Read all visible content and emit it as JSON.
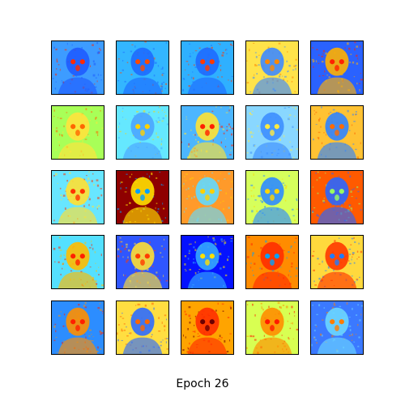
{
  "caption": "Epoch 26",
  "colormap": "jet",
  "colors": {
    "background": "#ffffff",
    "frame": "#000000",
    "jet_dark_blue": "#00008f",
    "jet_blue": "#0000ff",
    "jet_cyan": "#00ffff",
    "jet_yellow": "#ffff00",
    "jet_red": "#ff0000",
    "jet_dark_red": "#800000"
  },
  "grid": {
    "rows": 5,
    "columns": 5
  },
  "tiles": [
    {
      "bg": "#3d9cff",
      "face": "#1e5cff",
      "hot": "#ff2a00"
    },
    {
      "bg": "#33b6ff",
      "face": "#1d6bff",
      "hot": "#ff4a00"
    },
    {
      "bg": "#2fb0ff",
      "face": "#1e6cff",
      "hot": "#ff3a00"
    },
    {
      "bg": "#ffe34a",
      "face": "#3e8aff",
      "hot": "#ff8800"
    },
    {
      "bg": "#2a62ff",
      "face": "#ffb000",
      "hot": "#ff2200"
    },
    {
      "bg": "#a8ff58",
      "face": "#ffe33d",
      "hot": "#ff6600"
    },
    {
      "bg": "#65e8ff",
      "face": "#4ba5ff",
      "hot": "#ffd100"
    },
    {
      "bg": "#4cb6ff",
      "face": "#ffe233",
      "hot": "#ff1f00"
    },
    {
      "bg": "#89d7ff",
      "face": "#3e8fff",
      "hot": "#ffea40"
    },
    {
      "bg": "#ffc233",
      "face": "#2f84ff",
      "hot": "#ff6a00"
    },
    {
      "bg": "#68e6ff",
      "face": "#ffe033",
      "hot": "#ff3300"
    },
    {
      "bg": "#8e0000",
      "face": "#ffe000",
      "hot": "#00a0ff"
    },
    {
      "bg": "#ff9a2a",
      "face": "#62d9ff",
      "hot": "#ffd000"
    },
    {
      "bg": "#d6ff5c",
      "face": "#2e8cff",
      "hot": "#ffd600"
    },
    {
      "bg": "#ff5a00",
      "face": "#2a66ff",
      "hot": "#98ff60"
    },
    {
      "bg": "#54e0ff",
      "face": "#ffbc00",
      "hot": "#ff2000"
    },
    {
      "bg": "#2f56ff",
      "face": "#ffdf33",
      "hot": "#ff3b00"
    },
    {
      "bg": "#0512ff",
      "face": "#33a9ff",
      "hot": "#ffe000"
    },
    {
      "bg": "#ff8c00",
      "face": "#ff2d00",
      "hot": "#00a2ff"
    },
    {
      "bg": "#ffd93d",
      "face": "#ff3800",
      "hot": "#1f7cff"
    },
    {
      "bg": "#2c8dff",
      "face": "#ff8f00",
      "hot": "#ff1f00"
    },
    {
      "bg": "#ffde41",
      "face": "#2e6cff",
      "hot": "#ff6600"
    },
    {
      "bg": "#ffa400",
      "face": "#ff3000",
      "hot": "#6b0000"
    },
    {
      "bg": "#d8ff52",
      "face": "#ff8e00",
      "hot": "#ff1a00"
    },
    {
      "bg": "#3b79ff",
      "face": "#6bd6ff",
      "hot": "#ff7d00"
    }
  ]
}
